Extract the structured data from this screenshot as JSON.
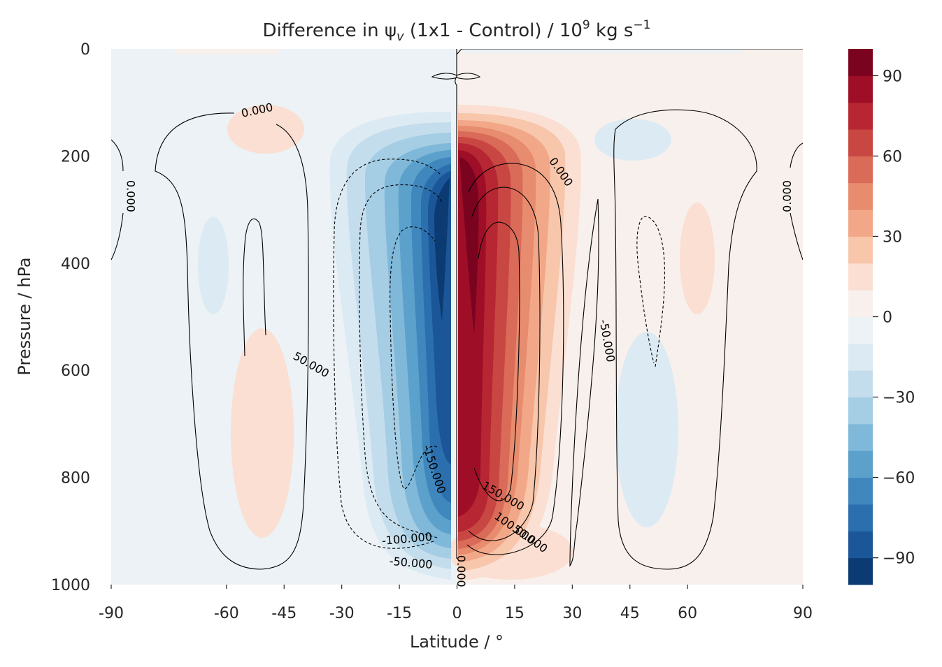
{
  "chart_data": {
    "type": "heatmap",
    "title": "Difference in ψ",
    "title_sub": "v",
    "title_rest": " (1x1 - Control) / 10",
    "title_exp": "9",
    "title_units": " kg s",
    "title_units_exp": "−1",
    "xlabel": "Latitude / °",
    "ylabel": "Pressure / hPa",
    "xlim": [
      -90,
      90
    ],
    "ylim": [
      1000,
      0
    ],
    "x_ticks": [
      -90,
      -60,
      -45,
      -30,
      -15,
      0,
      15,
      30,
      45,
      60,
      90
    ],
    "x_tick_labels": [
      "-90",
      "-60",
      "-45",
      "-30",
      "-15",
      "0",
      "15",
      "30",
      "45",
      "60",
      "90"
    ],
    "y_ticks": [
      0,
      200,
      400,
      600,
      800,
      1000
    ],
    "y_tick_labels": [
      "0",
      "200",
      "400",
      "600",
      "800",
      "1000"
    ],
    "colorbar": {
      "levels": [
        -100,
        -90,
        -80,
        -70,
        -60,
        -50,
        -40,
        -30,
        -20,
        -10,
        0,
        10,
        20,
        30,
        40,
        50,
        60,
        70,
        80,
        90,
        100
      ],
      "colors": [
        "#0b3b72",
        "#1b5798",
        "#2c6fae",
        "#3f87bd",
        "#5ba1cb",
        "#7fb8d9",
        "#a5cde4",
        "#c4dded",
        "#dceaf3",
        "#ecf2f5",
        "#f8f0ec",
        "#fadfd2",
        "#f7c6ab",
        "#f2a888",
        "#e78c6e",
        "#d96b58",
        "#c94742",
        "#b72733",
        "#9e0f27",
        "#7a0320"
      ],
      "tick_values": [
        90,
        60,
        30,
        0,
        -30,
        -60,
        -90
      ],
      "tick_labels": [
        "90",
        "60",
        "30",
        "0",
        "−30",
        "−60",
        "−90"
      ]
    },
    "series": [
      {
        "name": "difference field (filled)",
        "features": [
          {
            "lat": -4,
            "p": 300,
            "value": -95
          },
          {
            "lat": -4,
            "p": 550,
            "value": -75
          },
          {
            "lat": -4,
            "p": 850,
            "value": -60
          },
          {
            "lat": 4,
            "p": 280,
            "value": 95
          },
          {
            "lat": 4,
            "p": 550,
            "value": 85
          },
          {
            "lat": 4,
            "p": 880,
            "value": 75
          },
          {
            "lat": -35,
            "p": 650,
            "value": 10
          },
          {
            "lat": -35,
            "p": 200,
            "value": 8
          },
          {
            "lat": -52,
            "p": 380,
            "value": -8
          },
          {
            "lat": 48,
            "p": 420,
            "value": 8
          },
          {
            "lat": 35,
            "p": 650,
            "value": -10
          },
          {
            "lat": 35,
            "p": 200,
            "value": -6
          }
        ]
      }
    ],
    "contour_labels": [
      {
        "text": "0.000",
        "lat": -52,
        "p": 115
      },
      {
        "text": "0.000",
        "lat": -85,
        "p": 275
      },
      {
        "text": "50.000",
        "lat": -38,
        "p": 590
      },
      {
        "text": "-150.000",
        "lat": -6,
        "p": 785
      },
      {
        "text": "-100.000",
        "lat": -13,
        "p": 915
      },
      {
        "text": "-50.000",
        "lat": -12,
        "p": 960
      },
      {
        "text": "0.000",
        "lat": 1,
        "p": 975
      },
      {
        "text": "0.000",
        "lat": 27,
        "p": 230
      },
      {
        "text": "0.000",
        "lat": 86,
        "p": 275
      },
      {
        "text": "-50.000",
        "lat": 39,
        "p": 545
      },
      {
        "text": "150.000",
        "lat": 12,
        "p": 835
      },
      {
        "text": "100.000",
        "lat": 15,
        "p": 895
      },
      {
        "text": "50.000",
        "lat": 19,
        "p": 915
      }
    ],
    "grid": false
  }
}
